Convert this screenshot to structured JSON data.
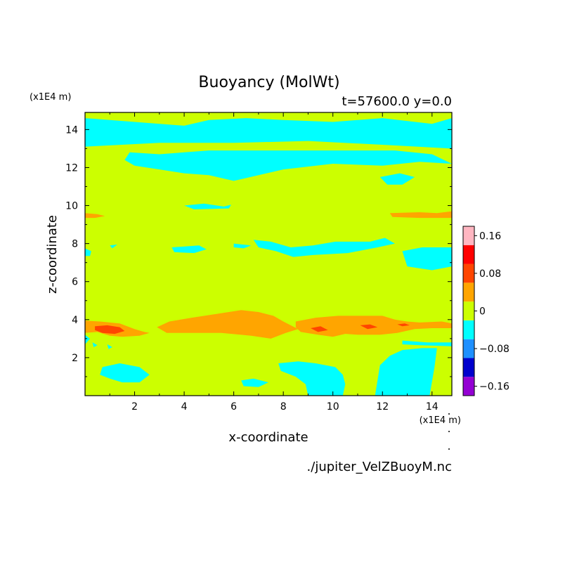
{
  "chart_data": {
    "type": "heatmap",
    "title": "Buoyancy (MolWt)",
    "subtitle": "t=57600.0 y=0.0",
    "xlabel": "x-coordinate",
    "ylabel": "z-coordinate",
    "x_unit_label": "(x1E4 m)",
    "y_unit_label": "(x1E4 m)",
    "source_label": "./jupiter_VelZBuoyM.nc",
    "xlim": [
      0,
      14.8
    ],
    "ylim": [
      0,
      14.9
    ],
    "x_ticks": [
      {
        "value": 2,
        "label": "2"
      },
      {
        "value": 4,
        "label": "4"
      },
      {
        "value": 6,
        "label": "6"
      },
      {
        "value": 8,
        "label": "8"
      },
      {
        "value": 10,
        "label": "10"
      },
      {
        "value": 12,
        "label": "12"
      },
      {
        "value": 14,
        "label": "14"
      }
    ],
    "y_ticks": [
      {
        "value": 2,
        "label": "2"
      },
      {
        "value": 4,
        "label": "4"
      },
      {
        "value": 6,
        "label": "6"
      },
      {
        "value": 8,
        "label": "8"
      },
      {
        "value": 10,
        "label": "10"
      },
      {
        "value": 12,
        "label": "12"
      },
      {
        "value": 14,
        "label": "14"
      }
    ],
    "background_level_color": "#ccff00",
    "colorbar": {
      "levels": [
        {
          "color": "#9400d3"
        },
        {
          "color": "#0000cd"
        },
        {
          "color": "#1e90ff"
        },
        {
          "color": "#00ffff"
        },
        {
          "color": "#ccff00"
        },
        {
          "color": "#ffa500"
        },
        {
          "color": "#ff4500"
        },
        {
          "color": "#ff0000"
        },
        {
          "color": "#ffb6c1"
        }
      ],
      "labels": [
        {
          "value": -0.16,
          "label": "−0.16"
        },
        {
          "value": -0.08,
          "label": "−0.08"
        },
        {
          "value": 0,
          "label": "0"
        },
        {
          "value": 0.08,
          "label": "0.08"
        },
        {
          "value": 0.16,
          "label": "0.16"
        }
      ]
    },
    "regions": [
      {
        "color": "#00ffff",
        "points": [
          [
            0,
            14.6
          ],
          [
            2,
            14.4
          ],
          [
            4,
            14.2
          ],
          [
            5,
            14.5
          ],
          [
            6.5,
            14.6
          ],
          [
            8,
            14.5
          ],
          [
            10,
            14.4
          ],
          [
            12,
            14.6
          ],
          [
            14,
            14.3
          ],
          [
            14.8,
            14.6
          ],
          [
            14.8,
            13.0
          ],
          [
            12,
            13.2
          ],
          [
            9,
            13.4
          ],
          [
            6,
            13.3
          ],
          [
            3,
            13.3
          ],
          [
            0,
            13.1
          ]
        ]
      },
      {
        "color": "#00ffff",
        "points": [
          [
            1.8,
            12.8
          ],
          [
            3,
            12.7
          ],
          [
            5,
            12.9
          ],
          [
            7,
            12.9
          ],
          [
            9,
            12.9
          ],
          [
            11,
            12.9
          ],
          [
            12.5,
            12.9
          ],
          [
            14,
            12.7
          ],
          [
            14.8,
            12.2
          ],
          [
            13.5,
            12.3
          ],
          [
            12,
            12.1
          ],
          [
            10,
            12.2
          ],
          [
            8,
            11.9
          ],
          [
            7,
            11.6
          ],
          [
            6,
            11.3
          ],
          [
            5,
            11.6
          ],
          [
            4,
            11.7
          ],
          [
            3,
            11.9
          ],
          [
            2,
            12.1
          ],
          [
            1.6,
            12.4
          ]
        ]
      },
      {
        "color": "#00ffff",
        "points": [
          [
            11.9,
            11.5
          ],
          [
            12.7,
            11.7
          ],
          [
            13.3,
            11.5
          ],
          [
            12.8,
            11.1
          ],
          [
            12.2,
            11.1
          ]
        ]
      },
      {
        "color": "#00ffff",
        "points": [
          [
            4,
            10.0
          ],
          [
            4.8,
            10.1
          ],
          [
            5.6,
            9.95
          ],
          [
            5.9,
            10.05
          ],
          [
            5.8,
            9.85
          ],
          [
            4.4,
            9.8
          ]
        ]
      },
      {
        "color": "#00ffff",
        "points": [
          [
            3.5,
            7.8
          ],
          [
            4.6,
            7.9
          ],
          [
            4.9,
            7.7
          ],
          [
            4.4,
            7.5
          ],
          [
            3.6,
            7.55
          ]
        ]
      },
      {
        "color": "#00ffff",
        "points": [
          [
            6.0,
            8.0
          ],
          [
            6.7,
            7.9
          ],
          [
            6.4,
            7.75
          ],
          [
            6.0,
            7.8
          ]
        ]
      },
      {
        "color": "#00ffff",
        "points": [
          [
            1.0,
            7.9
          ],
          [
            1.3,
            7.95
          ],
          [
            1.1,
            7.75
          ]
        ]
      },
      {
        "color": "#00ffff",
        "points": [
          [
            0,
            7.75
          ],
          [
            0.25,
            7.6
          ],
          [
            0.2,
            7.35
          ],
          [
            0,
            7.35
          ]
        ]
      },
      {
        "color": "#00ffff",
        "points": [
          [
            6.8,
            8.2
          ],
          [
            7.5,
            8.1
          ],
          [
            8.3,
            7.8
          ],
          [
            9.2,
            7.9
          ],
          [
            10.1,
            8.1
          ],
          [
            11.5,
            8.1
          ],
          [
            12.1,
            8.3
          ],
          [
            12.5,
            8.0
          ],
          [
            11.8,
            7.8
          ],
          [
            10.6,
            7.5
          ],
          [
            9.2,
            7.4
          ],
          [
            8.4,
            7.3
          ],
          [
            7.7,
            7.6
          ],
          [
            7.0,
            7.8
          ]
        ]
      },
      {
        "color": "#00ffff",
        "points": [
          [
            12.8,
            7.6
          ],
          [
            13.6,
            7.8
          ],
          [
            14.8,
            7.8
          ],
          [
            14.8,
            6.8
          ],
          [
            14,
            6.6
          ],
          [
            13,
            6.8
          ],
          [
            12.9,
            7.2
          ]
        ]
      },
      {
        "color": "#00ffff",
        "points": [
          [
            0,
            3.2
          ],
          [
            0.2,
            3.0
          ],
          [
            0,
            2.7
          ]
        ]
      },
      {
        "color": "#00ffff",
        "points": [
          [
            0.3,
            2.8
          ],
          [
            0.5,
            2.65
          ],
          [
            0.35,
            2.55
          ]
        ]
      },
      {
        "color": "#00ffff",
        "points": [
          [
            0.9,
            2.7
          ],
          [
            1.1,
            2.55
          ],
          [
            0.95,
            2.45
          ]
        ]
      },
      {
        "color": "#00ffff",
        "points": [
          [
            12.8,
            2.9
          ],
          [
            13.8,
            2.8
          ],
          [
            14.8,
            2.8
          ],
          [
            14.8,
            2.6
          ],
          [
            13.5,
            2.65
          ],
          [
            12.8,
            2.7
          ]
        ]
      },
      {
        "color": "#00ffff",
        "points": [
          [
            0.7,
            1.5
          ],
          [
            1.4,
            1.7
          ],
          [
            2.2,
            1.5
          ],
          [
            2.6,
            1.1
          ],
          [
            2.2,
            0.7
          ],
          [
            1.5,
            0.7
          ],
          [
            1.0,
            0.9
          ],
          [
            0.6,
            1.1
          ]
        ]
      },
      {
        "color": "#00ffff",
        "points": [
          [
            6.3,
            0.8
          ],
          [
            6.8,
            0.9
          ],
          [
            7.4,
            0.7
          ],
          [
            7.0,
            0.45
          ],
          [
            6.4,
            0.5
          ]
        ]
      },
      {
        "color": "#00ffff",
        "points": [
          [
            7.8,
            1.7
          ],
          [
            8.6,
            1.8
          ],
          [
            9.3,
            1.7
          ],
          [
            10.1,
            1.5
          ],
          [
            10.4,
            1.1
          ],
          [
            10.5,
            0.6
          ],
          [
            10.4,
            0
          ],
          [
            9.0,
            0
          ],
          [
            8.9,
            0.6
          ],
          [
            8.5,
            1.0
          ],
          [
            7.9,
            1.3
          ]
        ]
      },
      {
        "color": "#00ffff",
        "points": [
          [
            11.9,
            1.6
          ],
          [
            12.3,
            2.1
          ],
          [
            12.8,
            2.4
          ],
          [
            13.6,
            2.5
          ],
          [
            14.2,
            2.5
          ],
          [
            14.1,
            1.5
          ],
          [
            13.9,
            0
          ],
          [
            11.7,
            0
          ],
          [
            11.8,
            0.8
          ]
        ]
      },
      {
        "color": "#ffa500",
        "points": [
          [
            0,
            9.6
          ],
          [
            0.5,
            9.55
          ],
          [
            0.8,
            9.45
          ],
          [
            0.4,
            9.35
          ],
          [
            0,
            9.35
          ]
        ]
      },
      {
        "color": "#ffa500",
        "points": [
          [
            12.3,
            9.6
          ],
          [
            13.5,
            9.65
          ],
          [
            14.2,
            9.6
          ],
          [
            14.8,
            9.7
          ],
          [
            14.8,
            9.35
          ],
          [
            13.5,
            9.35
          ],
          [
            12.4,
            9.4
          ]
        ]
      },
      {
        "color": "#ffa500",
        "points": [
          [
            0,
            3.95
          ],
          [
            0.6,
            3.9
          ],
          [
            1.4,
            3.8
          ],
          [
            2.0,
            3.5
          ],
          [
            2.4,
            3.35
          ],
          [
            2.6,
            3.3
          ],
          [
            2.2,
            3.15
          ],
          [
            1.5,
            3.1
          ],
          [
            1.0,
            3.15
          ],
          [
            0.5,
            3.35
          ],
          [
            0,
            3.3
          ]
        ]
      },
      {
        "color": "#ffa500",
        "points": [
          [
            2.9,
            3.6
          ],
          [
            3.4,
            3.9
          ],
          [
            4.3,
            4.1
          ],
          [
            5.3,
            4.3
          ],
          [
            6.3,
            4.5
          ],
          [
            7.0,
            4.4
          ],
          [
            7.6,
            4.2
          ],
          [
            8.0,
            3.9
          ],
          [
            8.3,
            3.7
          ],
          [
            8.6,
            3.5
          ],
          [
            8.1,
            3.3
          ],
          [
            7.5,
            3.0
          ],
          [
            6.7,
            3.15
          ],
          [
            5.5,
            3.3
          ],
          [
            4.5,
            3.3
          ],
          [
            3.3,
            3.3
          ]
        ]
      },
      {
        "color": "#ffa500",
        "points": [
          [
            8.5,
            3.9
          ],
          [
            9.3,
            4.1
          ],
          [
            10.2,
            4.2
          ],
          [
            11.0,
            4.2
          ],
          [
            12,
            4.2
          ],
          [
            12.5,
            4.0
          ],
          [
            13.0,
            3.9
          ],
          [
            13.5,
            3.85
          ],
          [
            14.4,
            3.9
          ],
          [
            14.8,
            3.8
          ],
          [
            14.8,
            3.55
          ],
          [
            14,
            3.55
          ],
          [
            13.3,
            3.5
          ],
          [
            12.6,
            3.3
          ],
          [
            11.9,
            3.2
          ],
          [
            11,
            3.2
          ],
          [
            10.5,
            3.25
          ],
          [
            10,
            3.1
          ],
          [
            9.4,
            3.2
          ],
          [
            8.7,
            3.35
          ],
          [
            8.5,
            3.6
          ]
        ]
      },
      {
        "color": "#ff4500",
        "points": [
          [
            0.4,
            3.65
          ],
          [
            0.9,
            3.7
          ],
          [
            1.4,
            3.6
          ],
          [
            1.6,
            3.4
          ],
          [
            1.2,
            3.25
          ],
          [
            0.7,
            3.3
          ],
          [
            0.4,
            3.45
          ]
        ]
      },
      {
        "color": "#ff4500",
        "points": [
          [
            9.1,
            3.55
          ],
          [
            9.5,
            3.65
          ],
          [
            9.8,
            3.45
          ],
          [
            9.4,
            3.35
          ]
        ]
      },
      {
        "color": "#ff4500",
        "points": [
          [
            11.1,
            3.7
          ],
          [
            11.5,
            3.75
          ],
          [
            11.8,
            3.6
          ],
          [
            11.4,
            3.5
          ]
        ]
      },
      {
        "color": "#ff4500",
        "points": [
          [
            12.6,
            3.75
          ],
          [
            12.9,
            3.8
          ],
          [
            13.1,
            3.7
          ],
          [
            12.8,
            3.65
          ]
        ]
      }
    ]
  }
}
